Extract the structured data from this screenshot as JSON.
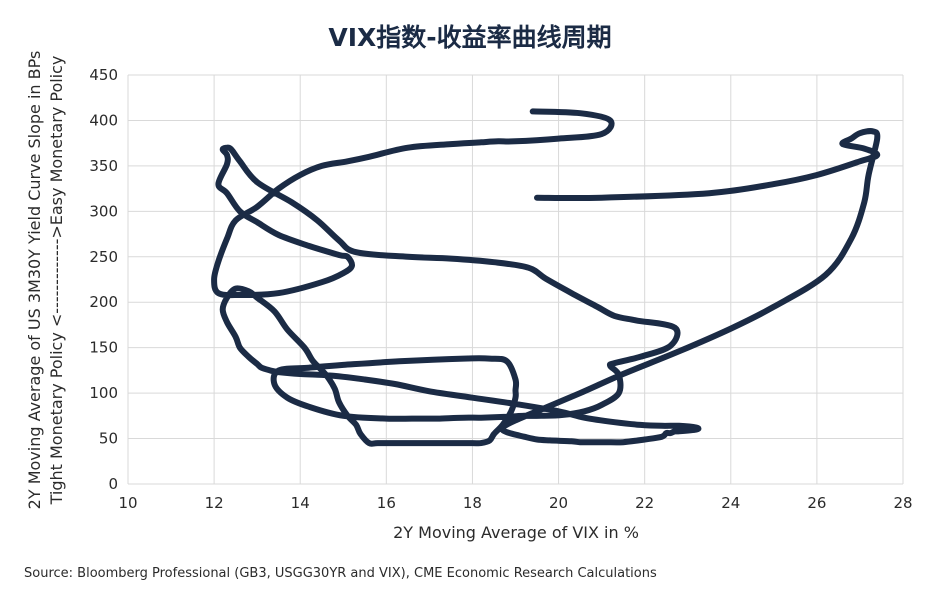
{
  "chart_data": {
    "type": "line",
    "title": "VIX指数-收益率曲线周期",
    "xlabel": "2Y Moving Average of VIX in %",
    "ylabel": [
      "2Y Moving Average of US 3M30Y Yield Curve Slope in BPs",
      "Tight Monetary Policy <------------->Easy Monetary Policy"
    ],
    "xlim": [
      10,
      28
    ],
    "ylim": [
      0,
      450
    ],
    "xticks": [
      "10",
      "12",
      "14",
      "16",
      "18",
      "20",
      "22",
      "24",
      "26",
      "28"
    ],
    "yticks": [
      "0",
      "50",
      "100",
      "150",
      "200",
      "250",
      "300",
      "350",
      "400",
      "450"
    ],
    "grid": true,
    "color": "#1b2b45",
    "series": [
      {
        "x": [
          19.4,
          20.5,
          21.2,
          21.0,
          20.0,
          19.0,
          18.6,
          18.2,
          17.5,
          16.5,
          15.6,
          15.1,
          14.5,
          14.0,
          13.5,
          13.0,
          12.5,
          12.3,
          12.1,
          12.0,
          12.1,
          12.6,
          13.5,
          14.5,
          15.0,
          15.2,
          15.1,
          14.9,
          14.2,
          13.5,
          13.0,
          12.6,
          12.3,
          12.1,
          12.3,
          12.3,
          12.2,
          12.3,
          12.4,
          12.6,
          13.0,
          13.8,
          14.4,
          14.9,
          15.3,
          16.5,
          17.5,
          18.5,
          19.3,
          19.7,
          20.3,
          20.9,
          21.3,
          21.8,
          22.7,
          22.6,
          21.9,
          21.3,
          21.2,
          21.4,
          21.4,
          21.0,
          20.6,
          20.1,
          19.6,
          19.2,
          18.8,
          18.2,
          17.8,
          17.2,
          16.8,
          16.0,
          15.0,
          14.2,
          13.7,
          13.4,
          13.5,
          14.2,
          15.0,
          16.3,
          17.8,
          18.4,
          18.8,
          19.0,
          19.0,
          19.0,
          18.9,
          18.7,
          18.5,
          18.4,
          18.2,
          18.0,
          17.6,
          17.2,
          16.8,
          16.3,
          15.8,
          15.6,
          15.4,
          15.3,
          15.1,
          14.9,
          14.8,
          14.6,
          14.3,
          14.1,
          13.7,
          13.4,
          13.0,
          12.8,
          12.5,
          12.3,
          12.2,
          12.3,
          12.5,
          12.6,
          12.8,
          13.0,
          13.1,
          13.3,
          13.5,
          14.0,
          14.5,
          15.0,
          15.5,
          16.2,
          17.0,
          18.0,
          19.0,
          20.0,
          20.6,
          21.3,
          21.9,
          22.4,
          22.8,
          23.2,
          23.2,
          22.8,
          22.7,
          22.6,
          22.5,
          22.4,
          22.0,
          21.5,
          21.1,
          20.8,
          20.5,
          20.3,
          19.8,
          19.5,
          19.2,
          18.8,
          18.7,
          19.0,
          19.6,
          20.5,
          21.5,
          22.8,
          24.0,
          25.0,
          26.2,
          26.8,
          27.1,
          27.2,
          27.4,
          27.3,
          27.0,
          26.8,
          26.6,
          27.1,
          27.4,
          27.0,
          26.0,
          25.0,
          23.5,
          21.0,
          19.5
        ],
        "y": [
          410,
          408,
          400,
          385,
          380,
          377,
          377,
          376,
          374,
          370,
          360,
          355,
          350,
          340,
          325,
          305,
          290,
          270,
          245,
          225,
          210,
          208,
          210,
          222,
          232,
          240,
          250,
          252,
          262,
          274,
          288,
          300,
          320,
          330,
          352,
          362,
          368,
          370,
          368,
          355,
          332,
          310,
          290,
          268,
          255,
          250,
          248,
          244,
          238,
          226,
          210,
          195,
          185,
          180,
          172,
          152,
          140,
          133,
          130,
          120,
          100,
          87,
          80,
          76,
          75,
          75,
          74,
          73,
          73,
          72,
          72,
          72,
          75,
          85,
          95,
          110,
          125,
          128,
          131,
          135,
          138,
          138,
          135,
          115,
          103,
          95,
          80,
          65,
          55,
          48,
          45,
          45,
          45,
          45,
          45,
          45,
          45,
          45,
          55,
          65,
          75,
          90,
          105,
          120,
          135,
          150,
          170,
          190,
          205,
          212,
          215,
          205,
          192,
          178,
          162,
          150,
          140,
          132,
          128,
          125,
          123,
          121,
          120,
          118,
          115,
          110,
          102,
          95,
          88,
          80,
          73,
          68,
          65,
          64,
          64,
          62,
          60,
          58,
          58,
          56,
          56,
          52,
          49,
          46,
          46,
          46,
          46,
          47,
          48,
          49,
          52,
          57,
          62,
          70,
          82,
          100,
          121,
          146,
          171,
          195,
          230,
          270,
          310,
          340,
          380,
          388,
          386,
          380,
          374,
          369,
          362,
          355,
          340,
          330,
          320,
          315,
          315
        ]
      }
    ]
  },
  "source_note": "Source: Bloomberg Professional (GB3, USGG30YR and VIX), CME Economic Research Calculations"
}
